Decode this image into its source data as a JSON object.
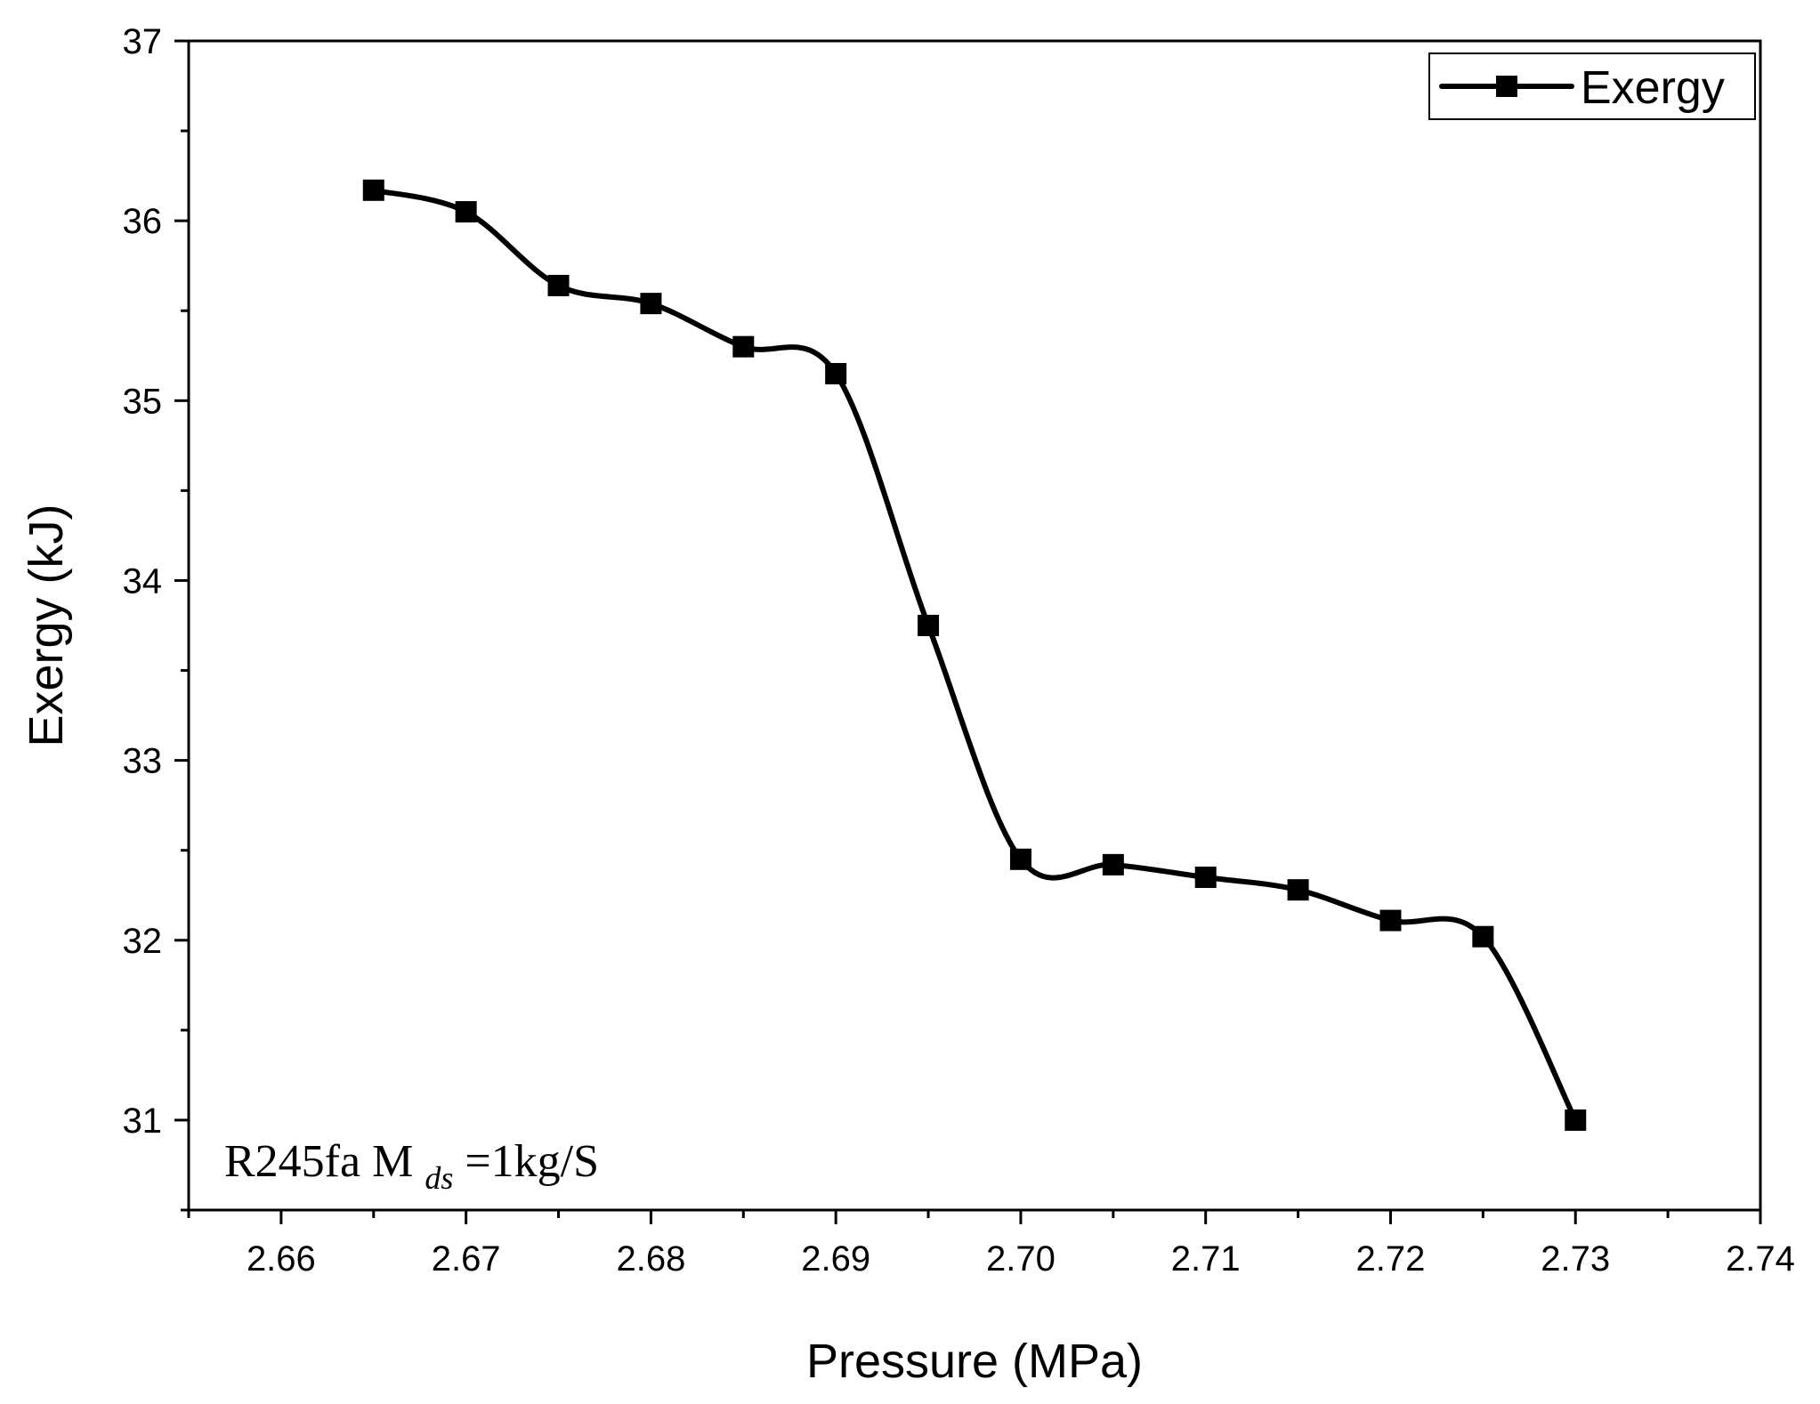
{
  "chart_data": {
    "type": "line",
    "title": "",
    "xlabel": "Pressure (MPa)",
    "ylabel": "Exergy (kJ)",
    "xlim": [
      2.655,
      2.74
    ],
    "ylim": [
      30.5,
      37
    ],
    "x_ticks": [
      2.66,
      2.67,
      2.68,
      2.69,
      2.7,
      2.71,
      2.72,
      2.73,
      2.74
    ],
    "x_tick_labels": [
      "2.66",
      "2.67",
      "2.68",
      "2.69",
      "2.70",
      "2.71",
      "2.72",
      "2.73",
      "2.74"
    ],
    "y_ticks": [
      31,
      32,
      33,
      34,
      35,
      36,
      37
    ],
    "y_tick_labels": [
      "31",
      "32",
      "33",
      "34",
      "35",
      "36",
      "37"
    ],
    "grid": false,
    "legend_position": "top-right",
    "series": [
      {
        "name": "Exergy",
        "marker": "square",
        "color": "#000000",
        "x": [
          2.665,
          2.67,
          2.675,
          2.68,
          2.685,
          2.69,
          2.695,
          2.7,
          2.705,
          2.71,
          2.715,
          2.72,
          2.725,
          2.73
        ],
        "y": [
          36.17,
          36.05,
          35.64,
          35.54,
          35.3,
          35.15,
          33.75,
          32.45,
          32.42,
          32.35,
          32.28,
          32.11,
          32.02,
          31.0
        ]
      }
    ],
    "annotation": {
      "text_prefix": "R245fa M",
      "subscript": "ds",
      "text_suffix": "=1kg/S",
      "position": "bottom-left"
    }
  }
}
